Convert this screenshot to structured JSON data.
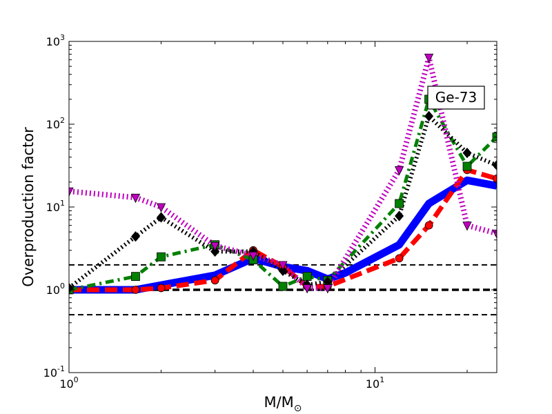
{
  "chart_data": {
    "type": "line",
    "xscale": "log",
    "yscale": "log",
    "xlim": [
      1,
      25
    ],
    "ylim": [
      0.1,
      1000
    ],
    "xlabel": "M/M",
    "xlabel_sub": "⊙",
    "ylabel": "Overproduction factor",
    "grid": false,
    "annotation": "Ge-73",
    "x_ticks": [
      {
        "value": 1,
        "base": "10",
        "exp": "0"
      },
      {
        "value": 10,
        "base": "10",
        "exp": "1"
      }
    ],
    "y_ticks": [
      {
        "value": 0.1,
        "base": "10",
        "exp": "-1"
      },
      {
        "value": 1,
        "base": "10",
        "exp": "0"
      },
      {
        "value": 10,
        "base": "10",
        "exp": "1"
      },
      {
        "value": 100,
        "base": "10",
        "exp": "2"
      },
      {
        "value": 1000,
        "base": "10",
        "exp": "3"
      }
    ],
    "reference_lines": [
      {
        "y": 2,
        "style": "dashed-thin"
      },
      {
        "y": 1,
        "style": "dashed-thick"
      },
      {
        "y": 0.5,
        "style": "dashed-thin"
      }
    ],
    "series": [
      {
        "color": "#0000ff",
        "linestyle": "solid",
        "width": 11,
        "marker": "none",
        "x": [
          1,
          1.65,
          3,
          4,
          5,
          6,
          7,
          8,
          12,
          15,
          20,
          25
        ],
        "y": [
          1.0,
          1.0,
          1.5,
          2.4,
          1.9,
          1.7,
          1.35,
          1.6,
          3.5,
          11,
          21,
          18
        ]
      },
      {
        "color": "#ff0000",
        "linestyle": "dashed",
        "width": 7,
        "marker": "circle",
        "x": [
          1,
          1.65,
          2,
          3,
          4,
          5,
          6,
          7,
          12,
          15,
          20,
          25
        ],
        "y": [
          1.0,
          1.0,
          1.05,
          1.3,
          3.0,
          1.9,
          1.1,
          1.1,
          2.4,
          6,
          28,
          22
        ]
      },
      {
        "color": "#008000",
        "linestyle": "dashdot",
        "width": 5,
        "marker": "square",
        "x": [
          1,
          1.65,
          2,
          3,
          4,
          5,
          6,
          7,
          12,
          15,
          20,
          25
        ],
        "y": [
          1.0,
          1.45,
          2.5,
          3.5,
          2.3,
          1.1,
          1.45,
          1.3,
          11,
          200,
          31,
          70
        ]
      },
      {
        "color": "#000000",
        "linestyle": "dotted",
        "width": 6,
        "marker": "diamond",
        "x": [
          1,
          1.65,
          2,
          3,
          4,
          5,
          6,
          7,
          12,
          15,
          20,
          25
        ],
        "y": [
          1.05,
          4.4,
          7.5,
          2.9,
          2.9,
          1.7,
          1.15,
          1.25,
          7.8,
          125,
          45,
          32
        ]
      },
      {
        "color": "#bf00bf",
        "linestyle": "dotted",
        "width": 8,
        "marker": "triangle-down",
        "x": [
          1,
          1.65,
          2,
          3,
          4,
          5,
          6,
          7,
          12,
          15,
          20,
          25
        ],
        "y": [
          15.5,
          13,
          10,
          3.4,
          2.6,
          2.0,
          1.05,
          1.05,
          28,
          640,
          6,
          4.8
        ]
      }
    ]
  }
}
